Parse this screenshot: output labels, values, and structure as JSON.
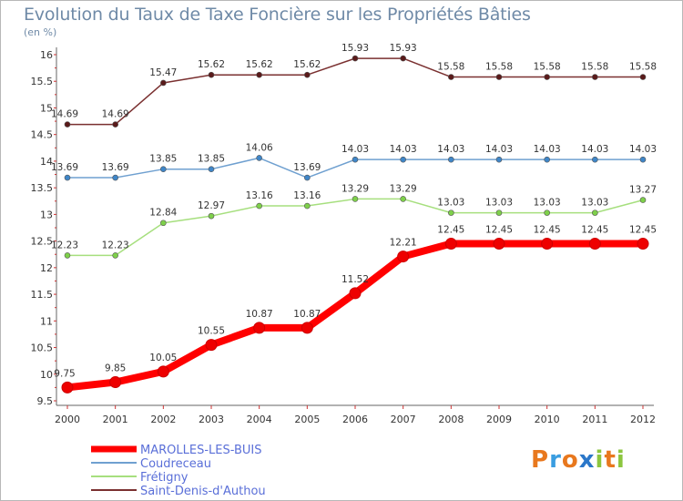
{
  "header": {
    "title": "Evolution du Taux de Taxe Foncière sur les Propriétés Bâties",
    "unit": "(en %)"
  },
  "brand": {
    "letters": [
      "P",
      "r",
      "o",
      "x",
      "i",
      "t",
      "i"
    ],
    "colors": [
      "#e8781e",
      "#3a9de0",
      "#e8781e",
      "#2b77c9",
      "#8cc63f",
      "#e8781e",
      "#8cc63f"
    ]
  },
  "chart_data": {
    "type": "line",
    "title": "Evolution du Taux de Taxe Foncière sur les Propriétés Bâties",
    "ylabel": "(en %)",
    "xlabel": "",
    "x": [
      "2000",
      "2001",
      "2002",
      "2003",
      "2004",
      "2005",
      "2006",
      "2007",
      "2008",
      "2009",
      "2010",
      "2011",
      "2012"
    ],
    "ylim": [
      9.5,
      16
    ],
    "yticks": [
      "9.5",
      "10",
      "10.5",
      "11",
      "11.5",
      "12",
      "12.5",
      "13",
      "13.5",
      "14",
      "14.5",
      "15",
      "15.5",
      "16"
    ],
    "grid": false,
    "legend": "bottom-left",
    "series": [
      {
        "name": "MAROLLES-LES-BUIS",
        "color": "#ff0000",
        "marker_color": "#ee0000",
        "text_color": "#5a6fd8",
        "width": 8,
        "marker": 6,
        "values": [
          9.75,
          9.85,
          10.05,
          10.55,
          10.87,
          10.87,
          11.52,
          12.21,
          12.45,
          12.45,
          12.45,
          12.45,
          12.45
        ],
        "labels": [
          "9.75",
          "9.85",
          "10.05",
          "10.55",
          "10.87",
          "10.87",
          "11.52",
          "12.21",
          "12.45",
          "12.45",
          "12.45",
          "12.45",
          "12.45"
        ]
      },
      {
        "name": "Coudreceau",
        "color": "#6fa0d0",
        "marker_color": "#3f86c8",
        "text_color": "#5a6fd8",
        "width": 1.5,
        "marker": 3,
        "values": [
          13.69,
          13.69,
          13.85,
          13.85,
          14.06,
          13.69,
          14.03,
          14.03,
          14.03,
          14.03,
          14.03,
          14.03,
          14.03
        ],
        "labels": [
          "13.69",
          "13.69",
          "13.85",
          "13.85",
          "14.06",
          "13.69",
          "14.03",
          "14.03",
          "14.03",
          "14.03",
          "14.03",
          "14.03",
          "14.03"
        ]
      },
      {
        "name": "Frétigny",
        "color": "#a6df7e",
        "marker_color": "#7ed04a",
        "text_color": "#5a6fd8",
        "width": 1.5,
        "marker": 3,
        "values": [
          12.23,
          12.23,
          12.84,
          12.97,
          13.16,
          13.16,
          13.29,
          13.29,
          13.03,
          13.03,
          13.03,
          13.03,
          13.27
        ],
        "labels": [
          "12.23",
          "12.23",
          "12.84",
          "12.97",
          "13.16",
          "13.16",
          "13.29",
          "13.29",
          "13.03",
          "13.03",
          "13.03",
          "13.03",
          "13.27"
        ]
      },
      {
        "name": "Saint-Denis-d'Authou",
        "color": "#7a3030",
        "marker_color": "#5a1a1a",
        "text_color": "#5a6fd8",
        "width": 1.5,
        "marker": 3,
        "values": [
          14.69,
          14.69,
          15.47,
          15.62,
          15.62,
          15.62,
          15.93,
          15.93,
          15.58,
          15.58,
          15.58,
          15.58,
          15.58
        ],
        "labels": [
          "14.69",
          "14.69",
          "15.47",
          "15.62",
          "15.62",
          "15.62",
          "15.93",
          "15.93",
          "15.58",
          "15.58",
          "15.58",
          "15.58",
          "15.58"
        ]
      }
    ]
  }
}
